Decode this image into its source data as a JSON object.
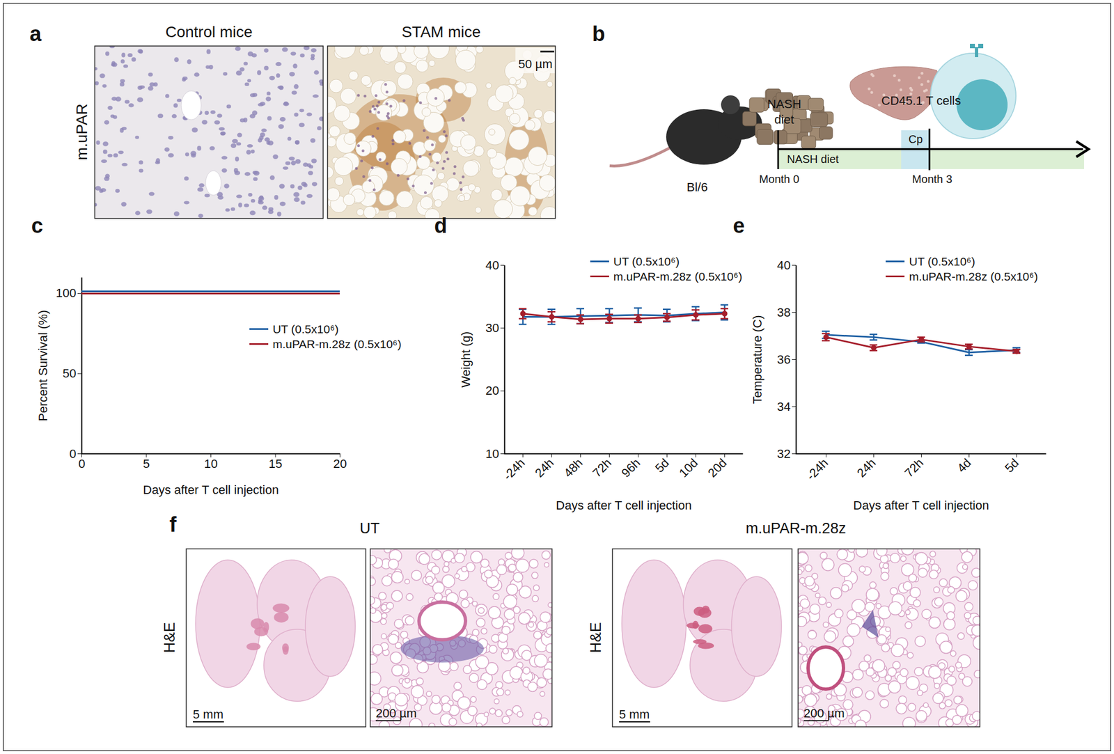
{
  "figure": {
    "a": {
      "label": "a",
      "row_label": "m.uPAR",
      "titles": [
        "Control mice",
        "STAM mice"
      ],
      "scale_bar": "50 µm"
    },
    "b": {
      "label": "b",
      "mouse": "Bl/6",
      "food": [
        "NASH",
        "diet"
      ],
      "cells": "CD45.1 T cells",
      "diet_bar": "NASH diet",
      "phase": "Cp",
      "start": "Month 0",
      "end": "Month 3"
    },
    "f": {
      "label": "f",
      "stain": "H&E",
      "groups": [
        {
          "title": "UT",
          "scale_bars": [
            "5 mm",
            "200 µm"
          ]
        },
        {
          "title": "m.uPAR-m.28z",
          "scale_bars": [
            "5 mm",
            "200 µm"
          ]
        }
      ]
    }
  },
  "chart_data": [
    {
      "panel_label": "c",
      "type": "line",
      "x_label": "Days after T cell injection",
      "y_label": "Percent Survival (%)",
      "x": [
        0,
        20
      ],
      "xlim": [
        0,
        20
      ],
      "xticks": [
        0,
        5,
        10,
        15,
        20
      ],
      "ylim": [
        0,
        110
      ],
      "yticks": [
        0,
        50,
        100
      ],
      "legend": "right",
      "series": [
        {
          "name": "UT (0.5x10⁶)",
          "color": "#1d5fa3",
          "values": [
            100,
            100
          ]
        },
        {
          "name": "m.uPAR-m.28z (0.5x10⁶)",
          "color": "#a51e2b",
          "values": [
            100,
            100
          ]
        }
      ]
    },
    {
      "panel_label": "d",
      "type": "line",
      "x_label": "Days after T cell injection",
      "y_label": "Weight (g)",
      "categories": [
        "-24h",
        "24h",
        "48h",
        "72h",
        "96h",
        "5d",
        "10d",
        "20d"
      ],
      "ylim": [
        10,
        40
      ],
      "yticks": [
        10,
        20,
        30,
        40
      ],
      "legend": "top",
      "series": [
        {
          "name": "UT (0.5x10⁶)",
          "color": "#1d5fa3",
          "values": [
            31.8,
            31.8,
            31.9,
            32.0,
            32.1,
            32.0,
            32.3,
            32.5
          ],
          "errors": [
            1.2,
            1.2,
            1.2,
            1.1,
            1.1,
            1.0,
            1.1,
            1.2
          ]
        },
        {
          "name": "m.uPAR-m.28z (0.5x10⁶)",
          "color": "#a51e2b",
          "marker": "circle",
          "values": [
            32.3,
            31.8,
            31.4,
            31.5,
            31.5,
            31.7,
            32.1,
            32.3
          ],
          "errors": [
            0.8,
            0.8,
            0.7,
            0.7,
            0.6,
            0.6,
            0.8,
            0.8
          ]
        }
      ]
    },
    {
      "panel_label": "e",
      "type": "line",
      "x_label": "Days after T cell injection",
      "y_label": "Temperature (C)",
      "categories": [
        "-24h",
        "24h",
        "72h",
        "4d",
        "5d"
      ],
      "ylim": [
        32,
        40
      ],
      "yticks": [
        32,
        34,
        36,
        38,
        40
      ],
      "legend": "top",
      "series": [
        {
          "name": "UT (0.5x10⁶)",
          "color": "#1d5fa3",
          "values": [
            37.05,
            36.95,
            36.75,
            36.3,
            36.4
          ],
          "errors": [
            0.15,
            0.12,
            0.05,
            0.12,
            0.1
          ]
        },
        {
          "name": "m.uPAR-m.28z (0.5x10⁶)",
          "color": "#a51e2b",
          "marker": "circle",
          "values": [
            36.95,
            36.5,
            36.85,
            36.55,
            36.35
          ],
          "errors": [
            0.15,
            0.12,
            0.1,
            0.1,
            0.08
          ]
        }
      ]
    }
  ]
}
